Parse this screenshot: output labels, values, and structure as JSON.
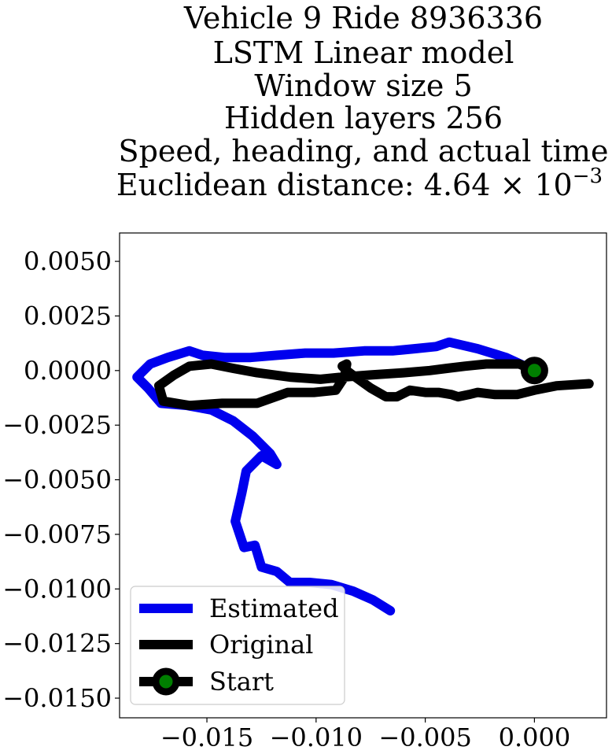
{
  "chart_data": {
    "type": "line",
    "title_lines": [
      "Vehicle 9 Ride 8936336",
      "LSTM Linear model",
      "Window size 5",
      "Hidden layers 256",
      "Speed, heading, and actual time"
    ],
    "title_distance_prefix": "Euclidean distance: 4.64 × 10",
    "title_distance_exponent": "−3",
    "xlim": [
      -0.019,
      0.0033
    ],
    "ylim": [
      -0.0159,
      0.0063
    ],
    "x_ticks": [
      {
        "value": -0.015,
        "label": "−0.015"
      },
      {
        "value": -0.01,
        "label": "−0.010"
      },
      {
        "value": -0.005,
        "label": "−0.005"
      },
      {
        "value": 0.0,
        "label": "0.000"
      }
    ],
    "y_ticks": [
      {
        "value": 0.005,
        "label": "0.0050"
      },
      {
        "value": 0.0025,
        "label": "0.0025"
      },
      {
        "value": 0.0,
        "label": "0.0000"
      },
      {
        "value": -0.0025,
        "label": "−0.0025"
      },
      {
        "value": -0.005,
        "label": "−0.0050"
      },
      {
        "value": -0.0075,
        "label": "−0.0075"
      },
      {
        "value": -0.01,
        "label": "−0.0100"
      },
      {
        "value": -0.0125,
        "label": "−0.0125"
      },
      {
        "value": -0.015,
        "label": "−0.0150"
      }
    ],
    "grid": false,
    "legend_position": "lower-left",
    "series": [
      {
        "name": "Estimated",
        "color": "#0000ee",
        "points": [
          [
            0.0,
            0.0
          ],
          [
            -0.0013,
            0.0006
          ],
          [
            -0.0026,
            0.001
          ],
          [
            -0.0039,
            0.0013
          ],
          [
            -0.0045,
            0.0011
          ],
          [
            -0.0055,
            0.001
          ],
          [
            -0.0065,
            0.0009
          ],
          [
            -0.0078,
            0.0009
          ],
          [
            -0.0092,
            0.0008
          ],
          [
            -0.0105,
            0.0008
          ],
          [
            -0.0118,
            0.0007
          ],
          [
            -0.013,
            0.0006
          ],
          [
            -0.0142,
            0.0006
          ],
          [
            -0.0152,
            0.0007
          ],
          [
            -0.0158,
            0.0009
          ],
          [
            -0.0168,
            0.0006
          ],
          [
            -0.0176,
            0.0003
          ],
          [
            -0.0182,
            -0.0003
          ],
          [
            -0.0177,
            -0.0008
          ],
          [
            -0.0171,
            -0.0015
          ],
          [
            -0.0159,
            -0.0016
          ],
          [
            -0.0148,
            -0.0018
          ],
          [
            -0.0138,
            -0.0023
          ],
          [
            -0.0129,
            -0.003
          ],
          [
            -0.0121,
            -0.0038
          ],
          [
            -0.0118,
            -0.0043
          ],
          [
            -0.0125,
            -0.0039
          ],
          [
            -0.0132,
            -0.0046
          ],
          [
            -0.0134,
            -0.0056
          ],
          [
            -0.0137,
            -0.0069
          ],
          [
            -0.0133,
            -0.0081
          ],
          [
            -0.0128,
            -0.008
          ],
          [
            -0.0125,
            -0.009
          ],
          [
            -0.0118,
            -0.0092
          ],
          [
            -0.0112,
            -0.0097
          ],
          [
            -0.0103,
            -0.0097
          ],
          [
            -0.0093,
            -0.0098
          ],
          [
            -0.0083,
            -0.0101
          ],
          [
            -0.0074,
            -0.0105
          ],
          [
            -0.0066,
            -0.011
          ]
        ]
      },
      {
        "name": "Original",
        "color": "#000000",
        "points": [
          [
            0.0025,
            -0.0006
          ],
          [
            0.001,
            -0.0007
          ],
          [
            0.0,
            -0.0009
          ],
          [
            -0.0008,
            -0.0011
          ],
          [
            -0.0018,
            -0.0011
          ],
          [
            -0.0026,
            -0.001
          ],
          [
            -0.003,
            -0.0011
          ],
          [
            -0.0035,
            -0.0012
          ],
          [
            -0.0038,
            -0.0011
          ],
          [
            -0.0044,
            -0.001
          ],
          [
            -0.005,
            -0.001
          ],
          [
            -0.0057,
            -0.0009
          ],
          [
            -0.0063,
            -0.0012
          ],
          [
            -0.0068,
            -0.0012
          ],
          [
            -0.0075,
            -0.0008
          ],
          [
            -0.0082,
            -0.0003
          ],
          [
            -0.0086,
            0.0
          ],
          [
            -0.0088,
            0.0002
          ],
          [
            -0.0086,
            0.0003
          ],
          [
            -0.0087,
            -0.0003
          ],
          [
            -0.0091,
            -0.0009
          ],
          [
            -0.0101,
            -0.001
          ],
          [
            -0.0113,
            -0.001
          ],
          [
            -0.0127,
            -0.0015
          ],
          [
            -0.0143,
            -0.0015
          ],
          [
            -0.0158,
            -0.0016
          ],
          [
            -0.017,
            -0.0014
          ],
          [
            -0.0172,
            -0.0007
          ],
          [
            -0.0165,
            -0.0002
          ],
          [
            -0.0158,
            0.0002
          ],
          [
            -0.0148,
            0.0003
          ],
          [
            -0.0138,
            0.0001
          ],
          [
            -0.0127,
            -0.0001
          ],
          [
            -0.0112,
            -0.0003
          ],
          [
            -0.0098,
            -0.0004
          ],
          [
            -0.0088,
            -0.0003
          ],
          [
            -0.0075,
            -0.0002
          ],
          [
            -0.006,
            -0.0001
          ],
          [
            -0.0048,
            0.0
          ],
          [
            -0.004,
            0.0001
          ],
          [
            -0.0032,
            0.0002
          ],
          [
            -0.0022,
            0.0003
          ],
          [
            -0.0015,
            0.0003
          ],
          [
            -0.0007,
            0.0003
          ],
          [
            0.0,
            0.0
          ]
        ]
      }
    ],
    "start": {
      "name": "Start",
      "x": 0.0,
      "y": 0.0,
      "marker_color": "#007f00",
      "edge_color": "#000000"
    },
    "legend": [
      {
        "label": "Estimated",
        "color": "#0000ee",
        "marker": false
      },
      {
        "label": "Original",
        "color": "#000000",
        "marker": false
      },
      {
        "label": "Start",
        "color": "#000000",
        "marker": true,
        "marker_color": "#007f00"
      }
    ]
  }
}
